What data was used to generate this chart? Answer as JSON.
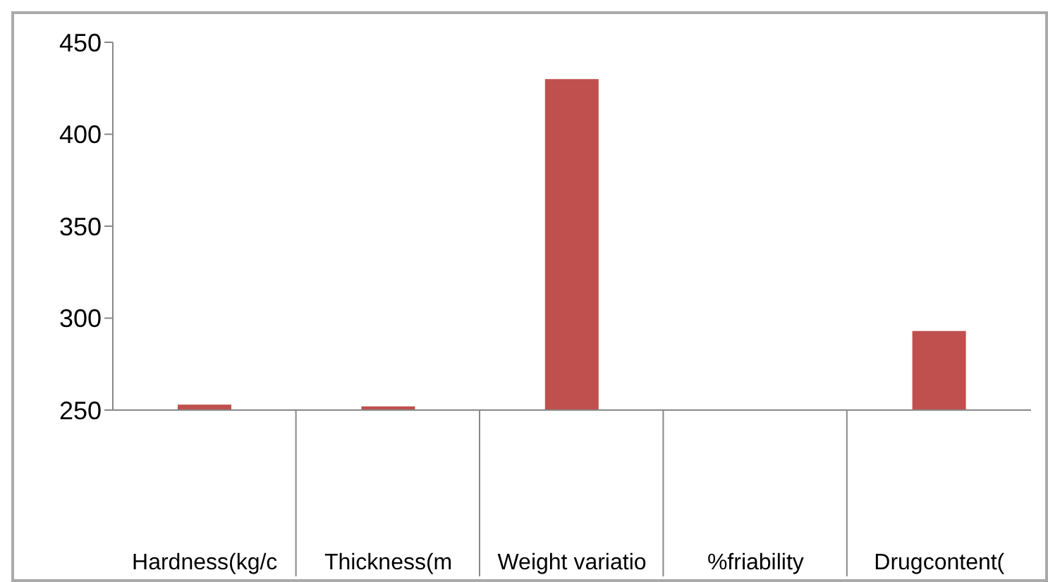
{
  "chart_data": {
    "type": "bar",
    "categories": [
      "Hardness(kg/c",
      "Thickness(m",
      "Weight variatio",
      "%friability",
      "Drugcontent("
    ],
    "series": [
      {
        "color": "#c0504d",
        "values": [
          253,
          252,
          430,
          null,
          293
        ]
      }
    ],
    "ylim": [
      250,
      450
    ],
    "yticks": [
      250,
      300,
      350,
      400,
      450
    ],
    "grid": false,
    "legend": false
  }
}
